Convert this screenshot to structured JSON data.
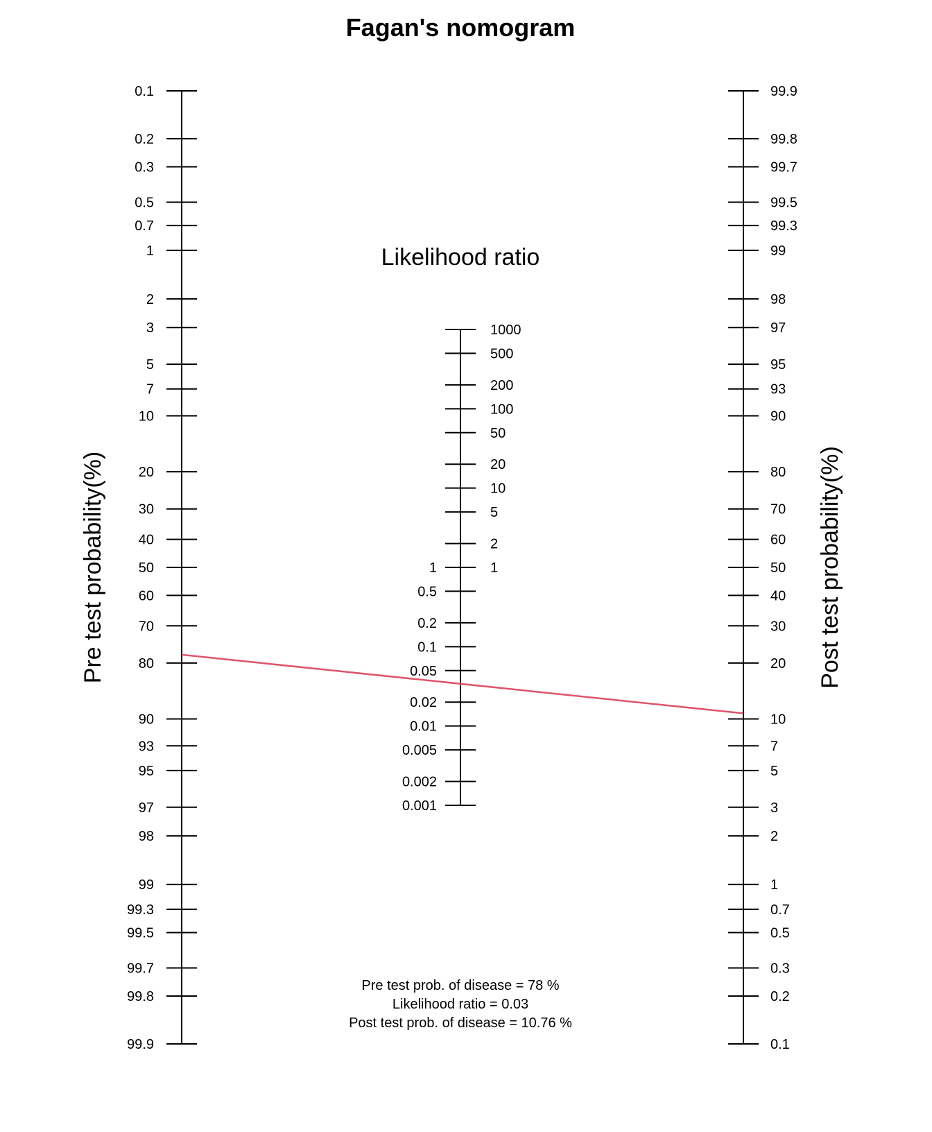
{
  "chart_data": {
    "type": "nomogram",
    "title": "Fagan's nomogram",
    "pre_axis": {
      "label": "Pre test probability(%)",
      "ticks": [
        "0.1",
        "0.2",
        "0.3",
        "0.5",
        "0.7",
        "1",
        "2",
        "3",
        "5",
        "7",
        "10",
        "20",
        "30",
        "40",
        "50",
        "60",
        "70",
        "80",
        "90",
        "93",
        "95",
        "97",
        "98",
        "99",
        "99.3",
        "99.5",
        "99.7",
        "99.8",
        "99.9"
      ]
    },
    "lr_axis": {
      "label": "Likelihood ratio",
      "ticks_upper": [
        "1000",
        "500",
        "200",
        "100",
        "50",
        "20",
        "10",
        "5",
        "2",
        "1"
      ],
      "ticks_lower": [
        "1",
        "0.5",
        "0.2",
        "0.1",
        "0.05",
        "0.02",
        "0.01",
        "0.005",
        "0.002",
        "0.001"
      ]
    },
    "post_axis": {
      "label": "Post test probability(%)",
      "ticks": [
        "99.9",
        "99.8",
        "99.7",
        "99.5",
        "99.3",
        "99",
        "98",
        "97",
        "95",
        "93",
        "90",
        "80",
        "70",
        "60",
        "50",
        "40",
        "30",
        "20",
        "10",
        "7",
        "5",
        "3",
        "2",
        "1",
        "0.7",
        "0.5",
        "0.3",
        "0.2",
        "0.1"
      ]
    },
    "line": {
      "pre_test_prob": 78,
      "likelihood_ratio": 0.03,
      "post_test_prob": 10.76,
      "color": "#DF536B"
    },
    "summary": [
      "Pre test prob. of disease = 78 %",
      "Likelihood ratio  = 0.03",
      "Post test prob. of disease = 10.76 %"
    ]
  }
}
